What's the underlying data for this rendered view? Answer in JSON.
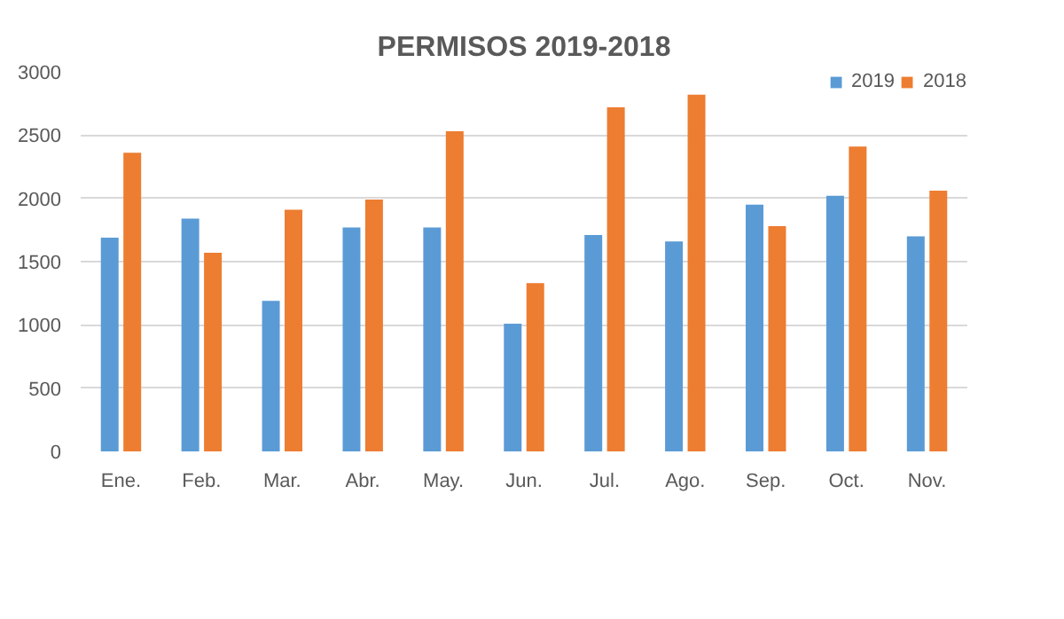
{
  "chart_data": {
    "type": "bar",
    "title": "PERMISOS 2019-2018",
    "categories": [
      "Ene.",
      "Feb.",
      "Mar.",
      "Abr.",
      "May.",
      "Jun.",
      "Jul.",
      "Ago.",
      "Sep.",
      "Oct.",
      "Nov."
    ],
    "series": [
      {
        "name": "2019",
        "color": "#5b9bd5",
        "values": [
          1690,
          1840,
          1190,
          1770,
          1770,
          1010,
          1710,
          1660,
          1950,
          2020,
          1700
        ]
      },
      {
        "name": "2018",
        "color": "#ed7d31",
        "values": [
          2360,
          1570,
          1910,
          1990,
          2530,
          1330,
          2720,
          2820,
          1780,
          2410,
          2060
        ]
      }
    ],
    "ylim": [
      0,
      3000
    ],
    "yticks": [
      0,
      500,
      1000,
      1500,
      2000,
      2500,
      3000
    ],
    "grid": "y",
    "legend": "top right"
  }
}
